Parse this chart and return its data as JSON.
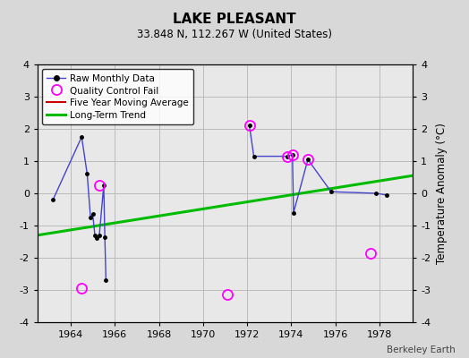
{
  "title": "LAKE PLEASANT",
  "subtitle": "33.848 N, 112.267 W (United States)",
  "ylabel": "Temperature Anomaly (°C)",
  "watermark": "Berkeley Earth",
  "xlim": [
    1962.5,
    1979.5
  ],
  "ylim": [
    -4,
    4
  ],
  "xticks": [
    1964,
    1966,
    1968,
    1970,
    1972,
    1974,
    1976,
    1978
  ],
  "yticks": [
    -4,
    -3,
    -2,
    -1,
    0,
    1,
    2,
    3,
    4
  ],
  "bg_color": "#d8d8d8",
  "plot_bg_color": "#e8e8e8",
  "raw_color": "#4444cc",
  "raw_marker_color": "#000000",
  "qc_color": "#ff00ff",
  "moving_avg_color": "#cc0000",
  "trend_color": "#00bb00",
  "grid_color": "#bbbbbb",
  "cluster1_x": [
    1963.2,
    1964.5,
    1964.75,
    1964.9,
    1965.0,
    1965.1,
    1965.2,
    1965.3,
    1965.5,
    1965.55,
    1965.6
  ],
  "cluster1_y": [
    -0.2,
    1.75,
    0.6,
    -0.75,
    -0.65,
    -1.3,
    -1.4,
    -1.3,
    0.25,
    -1.35,
    -2.7
  ],
  "cluster2_x": [
    1972.1,
    1972.3,
    1973.8,
    1974.05,
    1974.1,
    1974.75,
    1975.8,
    1977.85,
    1978.3
  ],
  "cluster2_y": [
    2.1,
    1.15,
    1.15,
    1.2,
    -0.6,
    1.05,
    0.05,
    0.0,
    -0.05
  ],
  "qc_x": [
    1964.5,
    1965.3,
    1971.1,
    1972.1,
    1973.8,
    1974.05,
    1974.75,
    1977.6
  ],
  "qc_y": [
    -2.95,
    0.25,
    -3.15,
    2.1,
    1.15,
    1.2,
    1.05,
    -1.85
  ],
  "trend_x": [
    1962.5,
    1979.5
  ],
  "trend_y": [
    -1.3,
    0.55
  ]
}
